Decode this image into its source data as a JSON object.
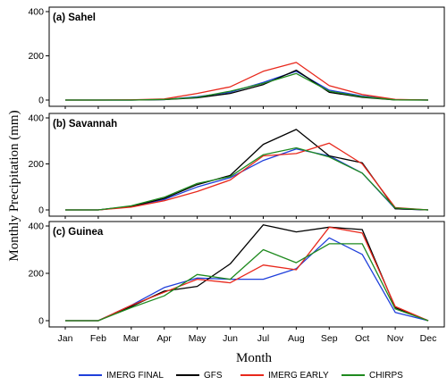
{
  "chart_data": {
    "type": "line",
    "ylabel": "Monthly Precipitation (mm)",
    "xlabel": "Month",
    "categories": [
      "Jan",
      "Feb",
      "Mar",
      "Apr",
      "May",
      "Jun",
      "Jul",
      "Aug",
      "Sep",
      "Oct",
      "Nov",
      "Dec"
    ],
    "legend_position": "bottom",
    "grid": false,
    "legend": [
      {
        "name": "IMERG FINAL",
        "color": "#1f3fdb"
      },
      {
        "name": "GFS",
        "color": "#000000"
      },
      {
        "name": "IMERG EARLY",
        "color": "#e8281c"
      },
      {
        "name": "CHIRPS",
        "color": "#1f8a1f"
      }
    ],
    "panels": [
      {
        "title": "(a) Sahel",
        "ylim": [
          0,
          400
        ],
        "yticks": [
          0,
          200,
          400
        ],
        "series": [
          {
            "name": "IMERG FINAL",
            "color": "#1f3fdb",
            "values": [
              0,
              0,
              0,
              2,
              15,
              35,
              80,
              130,
              45,
              18,
              2,
              0
            ]
          },
          {
            "name": "GFS",
            "color": "#000000",
            "values": [
              0,
              0,
              0,
              2,
              10,
              30,
              70,
              135,
              35,
              12,
              1,
              0
            ]
          },
          {
            "name": "IMERG EARLY",
            "color": "#e8281c",
            "values": [
              0,
              0,
              1,
              5,
              30,
              60,
              130,
              170,
              65,
              25,
              3,
              0
            ]
          },
          {
            "name": "CHIRPS",
            "color": "#1f8a1f",
            "values": [
              0,
              0,
              0,
              3,
              12,
              40,
              75,
              120,
              40,
              15,
              1,
              0
            ]
          }
        ]
      },
      {
        "title": "(b) Savannah",
        "ylim": [
          0,
          400
        ],
        "yticks": [
          0,
          200,
          400
        ],
        "series": [
          {
            "name": "IMERG FINAL",
            "color": "#1f3fdb",
            "values": [
              0,
              0,
              15,
              45,
              100,
              140,
              215,
              265,
              235,
              160,
              5,
              0
            ]
          },
          {
            "name": "GFS",
            "color": "#000000",
            "values": [
              0,
              0,
              15,
              50,
              110,
              150,
              285,
              350,
              235,
              205,
              5,
              0
            ]
          },
          {
            "name": "IMERG EARLY",
            "color": "#e8281c",
            "values": [
              0,
              0,
              12,
              40,
              80,
              130,
              235,
              245,
              290,
              200,
              10,
              0
            ]
          },
          {
            "name": "CHIRPS",
            "color": "#1f8a1f",
            "values": [
              0,
              0,
              18,
              55,
              115,
              145,
              240,
              270,
              230,
              160,
              8,
              0
            ]
          }
        ]
      },
      {
        "title": "(c) Guinea",
        "ylim": [
          0,
          400
        ],
        "yticks": [
          0,
          200,
          400
        ],
        "series": [
          {
            "name": "IMERG FINAL",
            "color": "#1f3fdb",
            "values": [
              0,
              0,
              65,
              140,
              180,
              175,
              175,
              220,
              350,
              280,
              35,
              0
            ]
          },
          {
            "name": "GFS",
            "color": "#000000",
            "values": [
              0,
              0,
              60,
              125,
              145,
              240,
              405,
              375,
              395,
              385,
              55,
              0
            ]
          },
          {
            "name": "IMERG EARLY",
            "color": "#e8281c",
            "values": [
              0,
              0,
              65,
              120,
              175,
              160,
              235,
              215,
              395,
              370,
              60,
              0
            ]
          },
          {
            "name": "CHIRPS",
            "color": "#1f8a1f",
            "values": [
              0,
              0,
              55,
              105,
              195,
              175,
              300,
              245,
              325,
              325,
              50,
              0
            ]
          }
        ]
      }
    ]
  }
}
